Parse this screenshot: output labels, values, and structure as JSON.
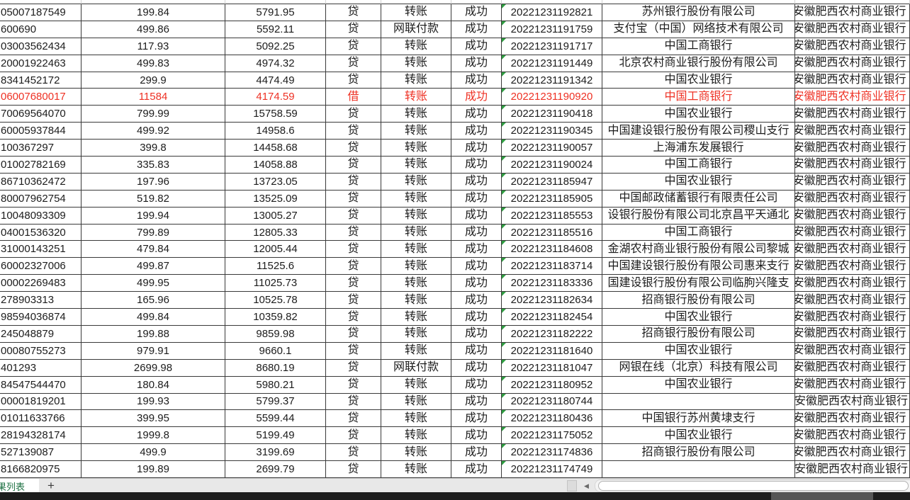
{
  "sheet": {
    "tab_label": "果列表",
    "add_sheet_label": "+",
    "scroll_left_arrow": "◀"
  },
  "colors": {
    "highlight_red": "#ee3124",
    "cell_flag_green": "#2f9e41",
    "tab_text_green": "#217346",
    "grid_border": "#3a3a3a"
  },
  "table": {
    "column_order": [
      "account",
      "amount",
      "balance",
      "loan_type",
      "method",
      "status",
      "time",
      "bank",
      "own_bank"
    ],
    "rows": [
      {
        "account": "05007187549",
        "amount": "199.84",
        "balance": "5791.95",
        "loan_type": "贷",
        "method": "转账",
        "status": "成功",
        "time": "20221231192821",
        "bank": "苏州银行股份有限公司",
        "own_bank": "安徽肥西农村商业银行",
        "highlight": false,
        "bank_empty": false
      },
      {
        "account": "600690",
        "amount": "499.86",
        "balance": "5592.11",
        "loan_type": "贷",
        "method": "网联付款",
        "status": "成功",
        "time": "20221231191759",
        "bank": "支付宝（中国）网络技术有限公司",
        "own_bank": "安徽肥西农村商业银行",
        "highlight": false,
        "bank_empty": false
      },
      {
        "account": "03003562434",
        "amount": "117.93",
        "balance": "5092.25",
        "loan_type": "贷",
        "method": "转账",
        "status": "成功",
        "time": "20221231191717",
        "bank": "中国工商银行",
        "own_bank": "安徽肥西农村商业银行",
        "highlight": false,
        "bank_empty": false
      },
      {
        "account": "20001922463",
        "amount": "499.83",
        "balance": "4974.32",
        "loan_type": "贷",
        "method": "转账",
        "status": "成功",
        "time": "20221231191449",
        "bank": "北京农村商业银行股份有限公司",
        "own_bank": "安徽肥西农村商业银行",
        "highlight": false,
        "bank_empty": false
      },
      {
        "account": "8341452172",
        "amount": "299.9",
        "balance": "4474.49",
        "loan_type": "贷",
        "method": "转账",
        "status": "成功",
        "time": "20221231191342",
        "bank": "中国农业银行",
        "own_bank": "安徽肥西农村商业银行",
        "highlight": false,
        "bank_empty": false
      },
      {
        "account": "06007680017",
        "amount": "11584",
        "balance": "4174.59",
        "loan_type": "借",
        "method": "转账",
        "status": "成功",
        "time": "20221231190920",
        "bank": "中国工商银行",
        "own_bank": "安徽肥西农村商业银行",
        "highlight": true,
        "bank_empty": false
      },
      {
        "account": "70069564070",
        "amount": "799.99",
        "balance": "15758.59",
        "loan_type": "贷",
        "method": "转账",
        "status": "成功",
        "time": "20221231190418",
        "bank": "中国农业银行",
        "own_bank": "安徽肥西农村商业银行",
        "highlight": false,
        "bank_empty": false
      },
      {
        "account": "60005937844",
        "amount": "499.92",
        "balance": "14958.6",
        "loan_type": "贷",
        "method": "转账",
        "status": "成功",
        "time": "20221231190345",
        "bank": "中国建设银行股份有限公司稷山支行",
        "own_bank": "安徽肥西农村商业银行",
        "highlight": false,
        "bank_empty": false
      },
      {
        "account": "100367297",
        "amount": "399.8",
        "balance": "14458.68",
        "loan_type": "贷",
        "method": "转账",
        "status": "成功",
        "time": "20221231190057",
        "bank": "上海浦东发展银行",
        "own_bank": "安徽肥西农村商业银行",
        "highlight": false,
        "bank_empty": false
      },
      {
        "account": "01002782169",
        "amount": "335.83",
        "balance": "14058.88",
        "loan_type": "贷",
        "method": "转账",
        "status": "成功",
        "time": "20221231190024",
        "bank": "中国工商银行",
        "own_bank": "安徽肥西农村商业银行",
        "highlight": false,
        "bank_empty": false
      },
      {
        "account": "86710362472",
        "amount": "197.96",
        "balance": "13723.05",
        "loan_type": "贷",
        "method": "转账",
        "status": "成功",
        "time": "20221231185947",
        "bank": "中国农业银行",
        "own_bank": "安徽肥西农村商业银行",
        "highlight": false,
        "bank_empty": false
      },
      {
        "account": "80007962754",
        "amount": "519.82",
        "balance": "13525.09",
        "loan_type": "贷",
        "method": "转账",
        "status": "成功",
        "time": "20221231185905",
        "bank": "中国邮政储蓄银行有限责任公司",
        "own_bank": "安徽肥西农村商业银行",
        "highlight": false,
        "bank_empty": false
      },
      {
        "account": "10048093309",
        "amount": "199.94",
        "balance": "13005.27",
        "loan_type": "贷",
        "method": "转账",
        "status": "成功",
        "time": "20221231185553",
        "bank": "设银行股份有限公司北京昌平天通北",
        "own_bank": "安徽肥西农村商业银行",
        "highlight": false,
        "bank_empty": false
      },
      {
        "account": "04001536320",
        "amount": "799.89",
        "balance": "12805.33",
        "loan_type": "贷",
        "method": "转账",
        "status": "成功",
        "time": "20221231185516",
        "bank": "中国工商银行",
        "own_bank": "安徽肥西农村商业银行",
        "highlight": false,
        "bank_empty": false
      },
      {
        "account": "31000143251",
        "amount": "479.84",
        "balance": "12005.44",
        "loan_type": "贷",
        "method": "转账",
        "status": "成功",
        "time": "20221231184608",
        "bank": "金湖农村商业银行股份有限公司黎城",
        "own_bank": "安徽肥西农村商业银行",
        "highlight": false,
        "bank_empty": false
      },
      {
        "account": "60002327006",
        "amount": "499.87",
        "balance": "11525.6",
        "loan_type": "贷",
        "method": "转账",
        "status": "成功",
        "time": "20221231183714",
        "bank": "中国建设银行股份有限公司惠来支行",
        "own_bank": "安徽肥西农村商业银行",
        "highlight": false,
        "bank_empty": false
      },
      {
        "account": "00002269483",
        "amount": "499.95",
        "balance": "11025.73",
        "loan_type": "贷",
        "method": "转账",
        "status": "成功",
        "time": "20221231183336",
        "bank": "国建设银行股份有限公司临朐兴隆支",
        "own_bank": "安徽肥西农村商业银行",
        "highlight": false,
        "bank_empty": false
      },
      {
        "account": "278903313",
        "amount": "165.96",
        "balance": "10525.78",
        "loan_type": "贷",
        "method": "转账",
        "status": "成功",
        "time": "20221231182634",
        "bank": "招商银行股份有限公司",
        "own_bank": "安徽肥西农村商业银行",
        "highlight": false,
        "bank_empty": false
      },
      {
        "account": "98594036874",
        "amount": "499.84",
        "balance": "10359.82",
        "loan_type": "贷",
        "method": "转账",
        "status": "成功",
        "time": "20221231182454",
        "bank": "中国农业银行",
        "own_bank": "安徽肥西农村商业银行",
        "highlight": false,
        "bank_empty": false
      },
      {
        "account": "245048879",
        "amount": "199.88",
        "balance": "9859.98",
        "loan_type": "贷",
        "method": "转账",
        "status": "成功",
        "time": "20221231182222",
        "bank": "招商银行股份有限公司",
        "own_bank": "安徽肥西农村商业银行",
        "highlight": false,
        "bank_empty": false
      },
      {
        "account": "00080755273",
        "amount": "979.91",
        "balance": "9660.1",
        "loan_type": "贷",
        "method": "转账",
        "status": "成功",
        "time": "20221231181640",
        "bank": "中国农业银行",
        "own_bank": "安徽肥西农村商业银行",
        "highlight": false,
        "bank_empty": false
      },
      {
        "account": "401293",
        "amount": "2699.98",
        "balance": "8680.19",
        "loan_type": "贷",
        "method": "网联付款",
        "status": "成功",
        "time": "20221231181047",
        "bank": "网银在线（北京）科技有限公司",
        "own_bank": "安徽肥西农村商业银行",
        "highlight": false,
        "bank_empty": false
      },
      {
        "account": "84547544470",
        "amount": "180.84",
        "balance": "5980.21",
        "loan_type": "贷",
        "method": "转账",
        "status": "成功",
        "time": "20221231180952",
        "bank": "中国农业银行",
        "own_bank": "安徽肥西农村商业银行",
        "highlight": false,
        "bank_empty": false
      },
      {
        "account": "00001819201",
        "amount": "199.93",
        "balance": "5799.37",
        "loan_type": "贷",
        "method": "转账",
        "status": "成功",
        "time": "20221231180744",
        "bank": "",
        "own_bank": "安徽肥西农村商业银行",
        "highlight": false,
        "bank_empty": true
      },
      {
        "account": "01011633766",
        "amount": "399.95",
        "balance": "5599.44",
        "loan_type": "贷",
        "method": "转账",
        "status": "成功",
        "time": "20221231180436",
        "bank": "中国银行苏州黄埭支行",
        "own_bank": "安徽肥西农村商业银行",
        "highlight": false,
        "bank_empty": false
      },
      {
        "account": "28194328174",
        "amount": "1999.8",
        "balance": "5199.49",
        "loan_type": "贷",
        "method": "转账",
        "status": "成功",
        "time": "20221231175052",
        "bank": "中国农业银行",
        "own_bank": "安徽肥西农村商业银行",
        "highlight": false,
        "bank_empty": false
      },
      {
        "account": "527139087",
        "amount": "499.9",
        "balance": "3199.69",
        "loan_type": "贷",
        "method": "转账",
        "status": "成功",
        "time": "20221231174836",
        "bank": "招商银行股份有限公司",
        "own_bank": "安徽肥西农村商业银行",
        "highlight": false,
        "bank_empty": false
      },
      {
        "account": "8166820975",
        "amount": "199.89",
        "balance": "2699.79",
        "loan_type": "贷",
        "method": "转账",
        "status": "成功",
        "time": "20221231174749",
        "bank": "",
        "own_bank": "安徽肥西农村商业银行",
        "highlight": false,
        "bank_empty": true
      }
    ]
  }
}
